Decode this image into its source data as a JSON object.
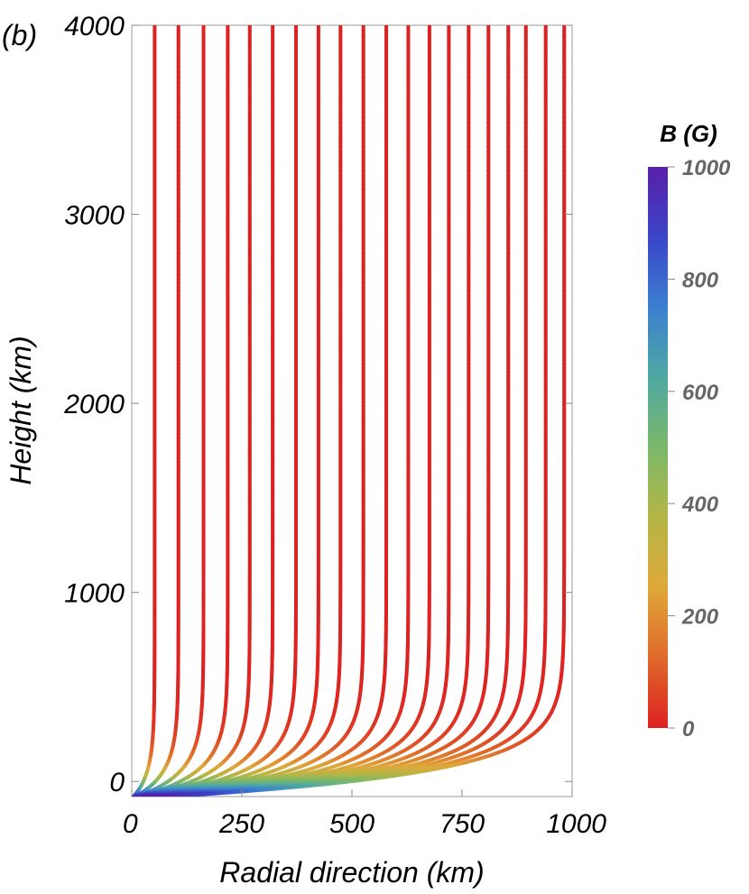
{
  "chart_data": {
    "type": "line",
    "panel_label": "(b)",
    "xlabel": "Radial direction (km)",
    "ylabel": "Height (km)",
    "xlim": [
      0,
      1000
    ],
    "ylim": [
      -80,
      4000
    ],
    "x_ticks": [
      "0",
      "250",
      "500",
      "750",
      "1000"
    ],
    "y_ticks": [
      "0",
      "1000",
      "2000",
      "3000",
      "4000"
    ],
    "field_lines_top_x": [
      52,
      106,
      163,
      218,
      268,
      320,
      373,
      424,
      474,
      526,
      578,
      628,
      676,
      720,
      765,
      810,
      855,
      895,
      940,
      982
    ],
    "colorbar": {
      "title": "B (G)",
      "range": [
        0,
        1000
      ],
      "ticks": [
        "0",
        "200",
        "400",
        "600",
        "800",
        "1000"
      ],
      "colors": [
        "#dd2222",
        "#e0682a",
        "#dfa83a",
        "#b4b646",
        "#7bb86a",
        "#4fa8a2",
        "#3b7fd0",
        "#3a45c8",
        "#5a20a8"
      ]
    }
  }
}
